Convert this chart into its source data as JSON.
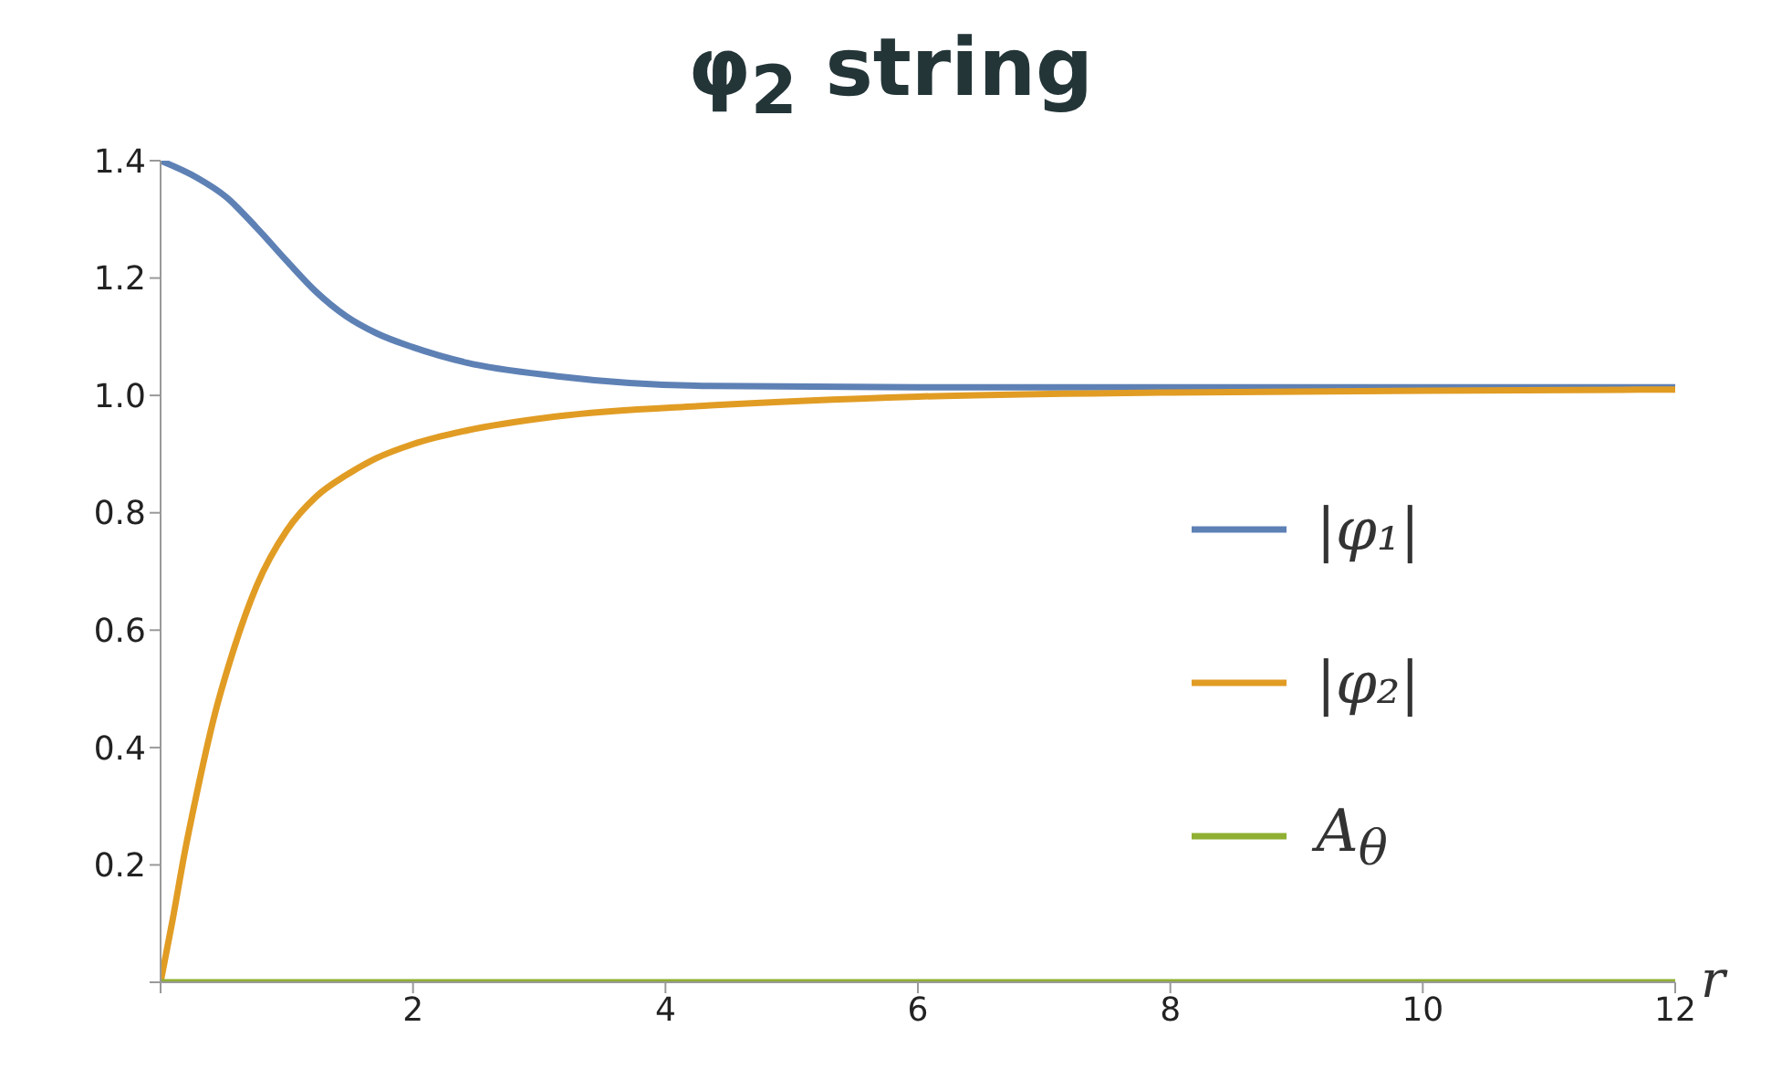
{
  "chart_data": {
    "type": "line",
    "title": "φ$_{2}$ string",
    "xlabel": "r",
    "xlim": [
      0,
      12
    ],
    "ylim": [
      0,
      1.4
    ],
    "xticks": [
      {
        "value": 0,
        "label": null
      },
      2,
      4,
      6,
      8,
      10,
      12
    ],
    "yticks": [
      {
        "value": 0,
        "label": null
      },
      0.2,
      0.4,
      0.6,
      0.8,
      "1.0",
      1.2,
      1.4
    ],
    "legend": "right",
    "marker": "none",
    "line_style": "solid",
    "series": [
      {
        "name": "|φ₁|",
        "color": "#5e81b5",
        "x": [
          0,
          0.28,
          0.52,
          0.76,
          1.0,
          1.23,
          1.47,
          1.71,
          2.0,
          2.42,
          3.13,
          4.36,
          6,
          8,
          10,
          12
        ],
        "values": [
          1.4,
          1.372,
          1.338,
          1.286,
          1.229,
          1.177,
          1.135,
          1.106,
          1.082,
          1.056,
          1.033,
          1.016,
          1.014,
          1.014,
          1.014,
          1.014
        ]
      },
      {
        "name": "|φ₂|",
        "color": "#e19c24",
        "x": [
          0,
          0.095,
          0.19,
          0.28,
          0.43,
          0.57,
          0.76,
          1.0,
          1.23,
          1.47,
          1.71,
          2.0,
          2.42,
          3.13,
          4.36,
          6,
          8,
          10,
          12
        ],
        "values": [
          0,
          0.106,
          0.22,
          0.315,
          0.457,
          0.561,
          0.675,
          0.77,
          0.827,
          0.864,
          0.893,
          0.917,
          0.94,
          0.964,
          0.983,
          0.998,
          1.005,
          1.008,
          1.01
        ]
      },
      {
        "name": "A$_{θ}$",
        "color": "#8fb032",
        "x": [
          0,
          12
        ],
        "values": [
          0,
          0
        ]
      }
    ]
  }
}
